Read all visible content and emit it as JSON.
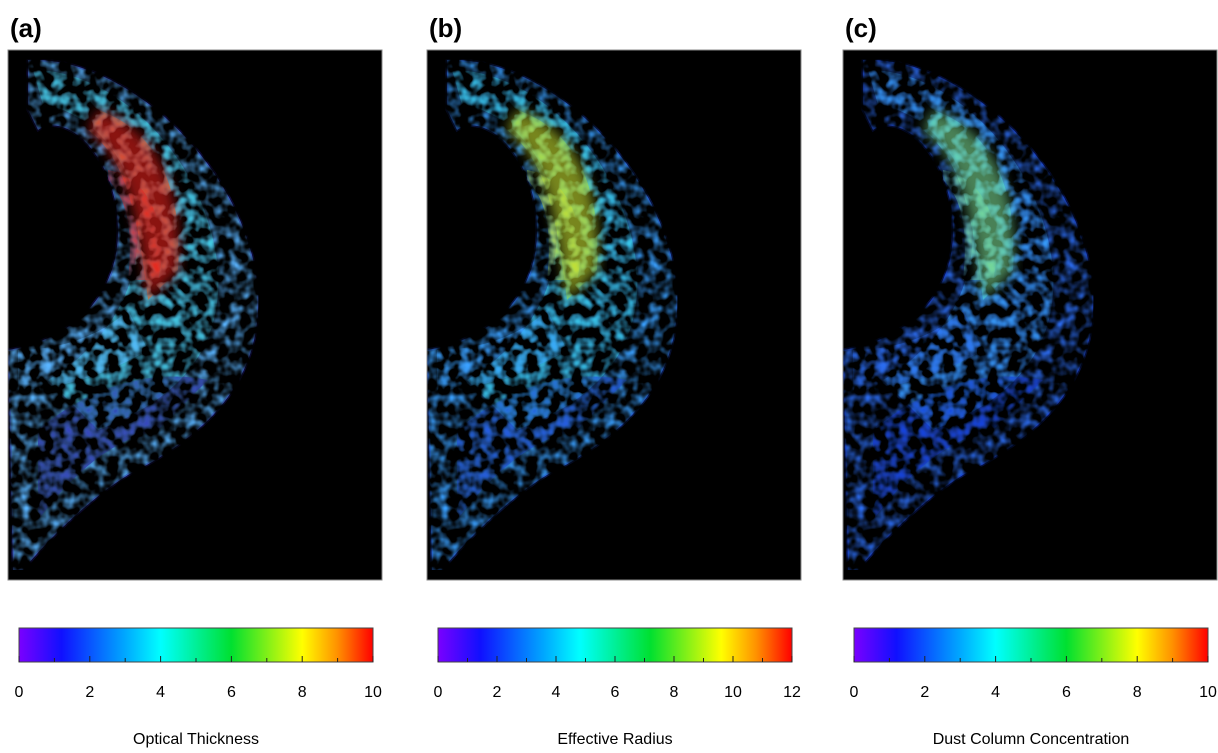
{
  "chart_data": [
    {
      "type": "image",
      "label": "(a)",
      "title": "Optical Thickness",
      "colorbar_lim": [
        0,
        10
      ],
      "colorbar_ticks": [
        0,
        2,
        4,
        6,
        8,
        10
      ],
      "palette": [
        "#2b1fa6",
        "#5ab4ff",
        "#3ad2d8",
        "#f06a1c",
        "#e8201a"
      ]
    },
    {
      "type": "image",
      "label": "(b)",
      "title": "Effective Radius",
      "colorbar_lim": [
        0,
        12
      ],
      "colorbar_ticks": [
        0,
        2,
        4,
        6,
        8,
        10,
        12
      ],
      "palette": [
        "#1f44d8",
        "#3aa0ff",
        "#38d4e0",
        "#8ed84a",
        "#c8e030"
      ]
    },
    {
      "type": "image",
      "label": "(c)",
      "title": "Dust Column Concentration",
      "colorbar_lim": [
        0,
        10
      ],
      "colorbar_ticks": [
        0,
        2,
        4,
        6,
        8,
        10
      ],
      "palette": [
        "#1234d8",
        "#2c6cf0",
        "#3aa8f8",
        "#48d8e0",
        "#7ad890"
      ]
    }
  ]
}
